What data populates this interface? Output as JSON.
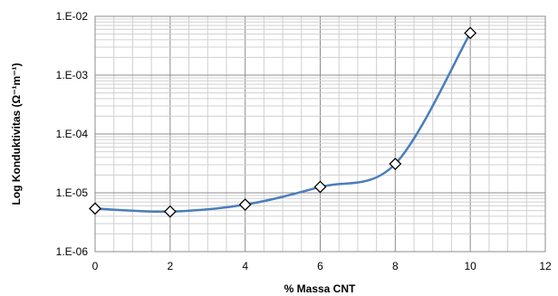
{
  "chart_data": {
    "type": "line",
    "title": "",
    "xlabel": "% Massa CNT",
    "ylabel": "Log Konduktivitas (Ω⁻¹m⁻¹)",
    "xlim": [
      0,
      12
    ],
    "ylim": [
      1e-06,
      0.01
    ],
    "y_scale": "log",
    "grid": true,
    "legend": "none",
    "x_ticks": [
      "0",
      "2",
      "4",
      "6",
      "8",
      "10",
      "12"
    ],
    "y_ticks": [
      "1.E-06",
      "1.E-05",
      "1.E-04",
      "1.E-03",
      "1.E-02"
    ],
    "series": [
      {
        "color": "#4a7ebb",
        "marker": "diamond",
        "smooth": true,
        "points": [
          {
            "x": 0,
            "y": 5.4e-06
          },
          {
            "x": 2,
            "y": 4.8e-06
          },
          {
            "x": 4,
            "y": 6.3e-06
          },
          {
            "x": 6,
            "y": 1.26e-05
          },
          {
            "x": 8,
            "y": 3.1e-05
          },
          {
            "x": 10,
            "y": 0.0052
          }
        ]
      }
    ]
  }
}
